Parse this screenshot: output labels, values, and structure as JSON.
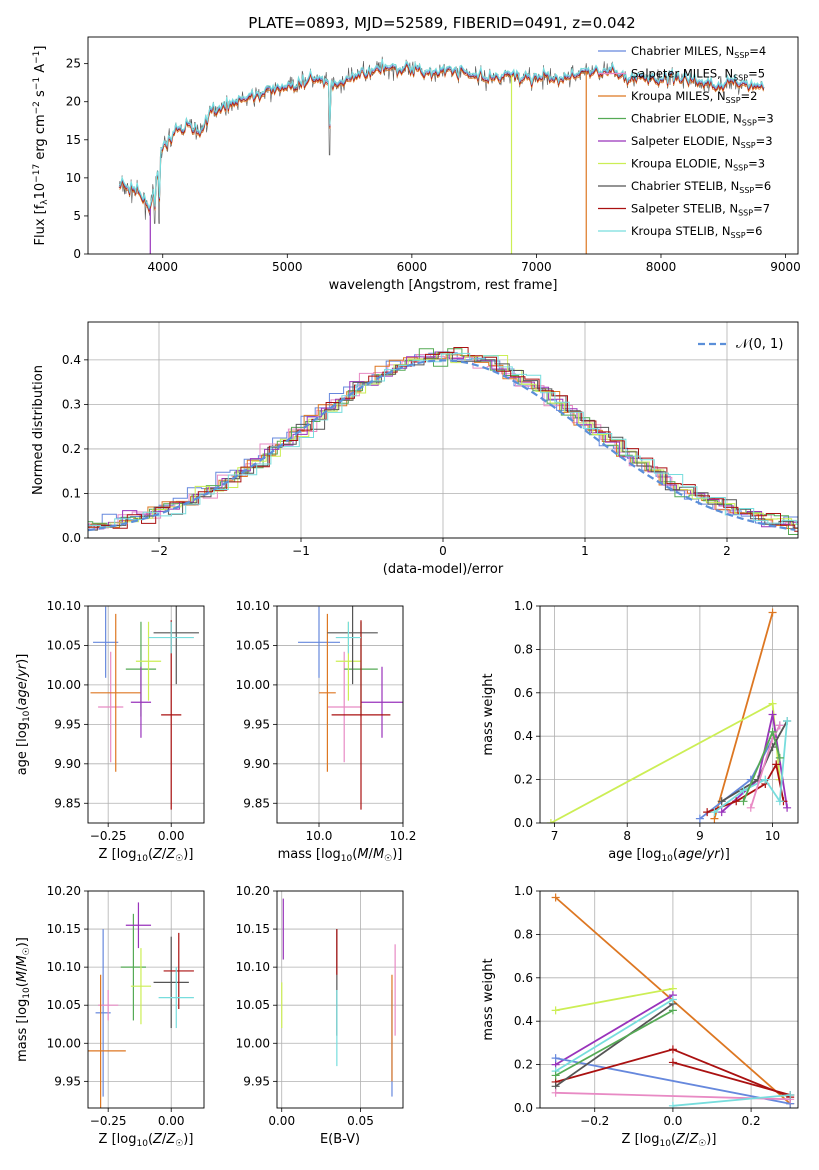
{
  "title": "PLATE=0893, MJD=52589, FIBERID=0491, z=0.042",
  "colors": {
    "Chabrier MILES": "#6688dd",
    "Salpeter MILES": "#e88ac4",
    "Kroupa MILES": "#dd7722",
    "Chabrier ELODIE": "#55aa55",
    "Salpeter ELODIE": "#9933bb",
    "Kroupa ELODIE": "#ccee55",
    "Chabrier STELIB": "#555555",
    "Salpeter STELIB": "#aa1111",
    "Kroupa STELIB": "#77dddd",
    "normal": "#5b8fd9"
  },
  "chart_data": [
    {
      "id": "spectrum",
      "type": "line",
      "xlabel": "wavelength [Angstrom, rest frame]",
      "xlim": [
        3400,
        9100
      ],
      "ylim": [
        0,
        28.5
      ],
      "xticks": [
        4000,
        5000,
        6000,
        7000,
        8000,
        9000
      ],
      "yticks": [
        0,
        5,
        10,
        15,
        20,
        25
      ],
      "legend": [
        {
          "name": "Chabrier MILES",
          "n": "4"
        },
        {
          "name": "Salpeter MILES",
          "n": "5"
        },
        {
          "name": "Kroupa MILES",
          "n": "2"
        },
        {
          "name": "Chabrier ELODIE",
          "n": "3"
        },
        {
          "name": "Salpeter ELODIE",
          "n": "3"
        },
        {
          "name": "Kroupa ELODIE",
          "n": "3"
        },
        {
          "name": "Chabrier STELIB",
          "n": "6"
        },
        {
          "name": "Salpeter STELIB",
          "n": "7"
        },
        {
          "name": "Kroupa STELIB",
          "n": "6"
        }
      ],
      "continuum_points": [
        [
          3650,
          9
        ],
        [
          3800,
          8
        ],
        [
          3900,
          6
        ],
        [
          4000,
          14
        ],
        [
          4100,
          16
        ],
        [
          4200,
          17
        ],
        [
          4300,
          16
        ],
        [
          4400,
          19
        ],
        [
          4600,
          20
        ],
        [
          4800,
          21
        ],
        [
          5000,
          22
        ],
        [
          5200,
          23
        ],
        [
          5400,
          22
        ],
        [
          5600,
          24
        ],
        [
          5800,
          24.5
        ],
        [
          6000,
          24
        ],
        [
          6200,
          24
        ],
        [
          6400,
          24
        ],
        [
          6600,
          23
        ],
        [
          6800,
          23.5
        ],
        [
          7000,
          23
        ],
        [
          7200,
          23
        ],
        [
          7400,
          24
        ],
        [
          7600,
          24
        ],
        [
          7800,
          23
        ],
        [
          8000,
          23
        ],
        [
          8200,
          23
        ],
        [
          8400,
          22
        ],
        [
          8600,
          22.5
        ],
        [
          8800,
          22
        ]
      ],
      "model_cuts": [
        {
          "model": "Salpeter ELODIE",
          "x": 3900
        },
        {
          "model": "Kroupa ELODIE",
          "x": 6800
        },
        {
          "model": "Kroupa MILES",
          "x": 7400
        }
      ]
    },
    {
      "id": "residuals",
      "type": "histogram",
      "xlabel": "(data-model)/error",
      "ylabel": "Normed distribution",
      "xlim": [
        -2.5,
        2.5
      ],
      "ylim": [
        0,
        0.485
      ],
      "xticks": [
        -2,
        -1,
        0,
        1,
        2
      ],
      "yticks": [
        0.0,
        0.1,
        0.2,
        0.3,
        0.4
      ],
      "bin_width": 0.1,
      "gaussian_legend": "𝒩(0, 1)"
    },
    {
      "id": "age_vs_Z",
      "type": "errorbar",
      "xlabel": "Z [log10(Z/Z☉)]",
      "ylabel": "age [log10(age/yr)]",
      "xlim": [
        -0.33,
        0.13
      ],
      "ylim": [
        9.825,
        10.1
      ],
      "xticks": [
        -0.25,
        0.0
      ],
      "yticks": [
        9.85,
        9.9,
        9.95,
        10.0,
        10.05,
        10.1
      ],
      "points": [
        {
          "model": "Chabrier MILES",
          "x": -0.26,
          "xerr": 0.05,
          "y": 10.054,
          "yerr": 0.045
        },
        {
          "model": "Salpeter MILES",
          "x": -0.24,
          "xerr": 0.05,
          "y": 9.972,
          "yerr": 0.07
        },
        {
          "model": "Kroupa MILES",
          "x": -0.22,
          "xerr": 0.1,
          "y": 9.99,
          "yerr": 0.1
        },
        {
          "model": "Chabrier ELODIE",
          "x": -0.12,
          "xerr": 0.06,
          "y": 10.02,
          "yerr": 0.06
        },
        {
          "model": "Salpeter ELODIE",
          "x": -0.12,
          "xerr": 0.04,
          "y": 9.978,
          "yerr": 0.045
        },
        {
          "model": "Kroupa ELODIE",
          "x": -0.09,
          "xerr": 0.05,
          "y": 10.03,
          "yerr": 0.05
        },
        {
          "model": "Chabrier STELIB",
          "x": 0.02,
          "xerr": 0.09,
          "y": 10.066,
          "yerr": 0.065
        },
        {
          "model": "Salpeter STELIB",
          "x": 0.0,
          "xerr": 0.04,
          "y": 9.962,
          "yerr": 0.12
        },
        {
          "model": "Kroupa STELIB",
          "x": 0.0,
          "xerr": 0.09,
          "y": 10.06,
          "yerr": 0.02
        }
      ]
    },
    {
      "id": "age_vs_mass",
      "type": "errorbar",
      "xlabel": "mass [log10(M/M☉)]",
      "xlim": [
        9.9,
        10.2
      ],
      "ylim": [
        9.825,
        10.1
      ],
      "xticks": [
        10.0,
        10.2
      ],
      "yticks": [
        9.85,
        9.9,
        9.95,
        10.0,
        10.05,
        10.1
      ],
      "points": [
        {
          "model": "Chabrier MILES",
          "x": 10.0,
          "xerr": 0.05,
          "y": 10.054,
          "yerr": 0.045
        },
        {
          "model": "Salpeter MILES",
          "x": 10.06,
          "xerr": 0.04,
          "y": 9.972,
          "yerr": 0.07
        },
        {
          "model": "Kroupa MILES",
          "x": 10.02,
          "xerr": 0.02,
          "y": 9.99,
          "yerr": 0.1
        },
        {
          "model": "Chabrier ELODIE",
          "x": 10.1,
          "xerr": 0.04,
          "y": 10.02,
          "yerr": 0.06
        },
        {
          "model": "Salpeter ELODIE",
          "x": 10.15,
          "xerr": 0.05,
          "y": 9.978,
          "yerr": 0.045
        },
        {
          "model": "Kroupa ELODIE",
          "x": 10.07,
          "xerr": 0.03,
          "y": 10.03,
          "yerr": 0.05
        },
        {
          "model": "Chabrier STELIB",
          "x": 10.08,
          "xerr": 0.06,
          "y": 10.066,
          "yerr": 0.065
        },
        {
          "model": "Salpeter STELIB",
          "x": 10.1,
          "xerr": 0.07,
          "y": 9.962,
          "yerr": 0.12
        },
        {
          "model": "Kroupa STELIB",
          "x": 10.07,
          "xerr": 0.03,
          "y": 10.06,
          "yerr": 0.02
        }
      ]
    },
    {
      "id": "weight_vs_age",
      "type": "line",
      "xlabel": "age [log10(age/yr)]",
      "ylabel": "mass weight",
      "xlim": [
        6.8,
        10.35
      ],
      "ylim": [
        0,
        1.0
      ],
      "xticks": [
        7,
        8,
        9,
        10
      ],
      "yticks": [
        0.0,
        0.2,
        0.4,
        0.6,
        0.8,
        1.0
      ],
      "series": [
        {
          "model": "Kroupa MILES",
          "x": [
            9.2,
            10.0
          ],
          "y": [
            0.02,
            0.97
          ]
        },
        {
          "model": "Kroupa ELODIE",
          "x": [
            6.95,
            10.0,
            10.1
          ],
          "y": [
            0.0,
            0.55,
            0.2
          ]
        },
        {
          "model": "Chabrier MILES",
          "x": [
            9.0,
            9.7,
            10.1
          ],
          "y": [
            0.02,
            0.2,
            0.45
          ]
        },
        {
          "model": "Salpeter ELODIE",
          "x": [
            9.3,
            9.8,
            10.0,
            10.2
          ],
          "y": [
            0.05,
            0.2,
            0.5,
            0.07
          ]
        },
        {
          "model": "Salpeter STELIB",
          "x": [
            9.1,
            9.5,
            9.9,
            10.05,
            10.15
          ],
          "y": [
            0.05,
            0.1,
            0.18,
            0.27,
            0.1
          ]
        },
        {
          "model": "Chabrier STELIB",
          "x": [
            9.3,
            9.8,
            10.0,
            10.2
          ],
          "y": [
            0.1,
            0.2,
            0.35,
            0.47
          ]
        },
        {
          "model": "Kroupa STELIB",
          "x": [
            9.2,
            9.6,
            9.9,
            10.1,
            10.2
          ],
          "y": [
            0.05,
            0.15,
            0.2,
            0.1,
            0.47
          ]
        },
        {
          "model": "Salpeter MILES",
          "x": [
            9.7,
            10.0,
            10.1
          ],
          "y": [
            0.07,
            0.39,
            0.45
          ]
        },
        {
          "model": "Chabrier ELODIE",
          "x": [
            9.6,
            10.0,
            10.1
          ],
          "y": [
            0.1,
            0.42,
            0.3
          ]
        }
      ]
    },
    {
      "id": "mass_vs_Z",
      "type": "errorbar",
      "xlabel": "Z [log10(Z/Z☉)]",
      "ylabel": "mass [log10(M/M☉)]",
      "xlim": [
        -0.33,
        0.13
      ],
      "ylim": [
        9.915,
        10.2
      ],
      "xticks": [
        -0.25,
        0.0
      ],
      "yticks": [
        9.95,
        10.0,
        10.05,
        10.1,
        10.15,
        10.2
      ],
      "points": [
        {
          "model": "Chabrier MILES",
          "x": -0.27,
          "xerr": 0.03,
          "y": 10.04,
          "yerr": 0.11
        },
        {
          "model": "Salpeter MILES",
          "x": -0.25,
          "xerr": 0.04,
          "y": 10.05,
          "yerr": 0.02
        },
        {
          "model": "Kroupa MILES",
          "x": -0.28,
          "xerr": 0.1,
          "y": 9.99,
          "yerr": 0.1
        },
        {
          "model": "Chabrier ELODIE",
          "x": -0.15,
          "xerr": 0.05,
          "y": 10.1,
          "yerr": 0.07
        },
        {
          "model": "Salpeter ELODIE",
          "x": -0.13,
          "xerr": 0.05,
          "y": 10.155,
          "yerr": 0.03
        },
        {
          "model": "Kroupa ELODIE",
          "x": -0.12,
          "xerr": 0.04,
          "y": 10.075,
          "yerr": 0.05
        },
        {
          "model": "Chabrier STELIB",
          "x": 0.0,
          "xerr": 0.07,
          "y": 10.08,
          "yerr": 0.06
        },
        {
          "model": "Salpeter STELIB",
          "x": 0.03,
          "xerr": 0.06,
          "y": 10.095,
          "yerr": 0.05
        },
        {
          "model": "Kroupa STELIB",
          "x": 0.02,
          "xerr": 0.07,
          "y": 10.06,
          "yerr": 0.04
        }
      ]
    },
    {
      "id": "mass_vs_ebv",
      "type": "errorbar",
      "xlabel": "E(B-V)",
      "xlim": [
        -0.003,
        0.077
      ],
      "ylim": [
        9.915,
        10.2
      ],
      "xticks": [
        0.0,
        0.05
      ],
      "yticks": [
        9.95,
        10.0,
        10.05,
        10.1,
        10.15,
        10.2
      ],
      "points": [
        {
          "model": "Chabrier MILES",
          "x": 0.07,
          "xerr": 0,
          "y": 10.0,
          "yerr": 0.07
        },
        {
          "model": "Salpeter MILES",
          "x": 0.072,
          "xerr": 0,
          "y": 10.07,
          "yerr": 0.06
        },
        {
          "model": "Kroupa MILES",
          "x": 0.07,
          "xerr": 0,
          "y": 10.02,
          "yerr": 0.07
        },
        {
          "model": "Salpeter ELODIE",
          "x": 0.001,
          "xerr": 0,
          "y": 10.15,
          "yerr": 0.04
        },
        {
          "model": "Kroupa ELODIE",
          "x": 0.0,
          "xerr": 0,
          "y": 10.05,
          "yerr": 0.03
        },
        {
          "model": "Chabrier STELIB",
          "x": 0.035,
          "xerr": 0,
          "y": 10.08,
          "yerr": 0.07
        },
        {
          "model": "Salpeter STELIB",
          "x": 0.035,
          "xerr": 0,
          "y": 10.12,
          "yerr": 0.03
        },
        {
          "model": "Kroupa STELIB",
          "x": 0.035,
          "xerr": 0,
          "y": 10.02,
          "yerr": 0.05
        }
      ]
    },
    {
      "id": "weight_vs_Z",
      "type": "line",
      "xlabel": "Z [log10(Z/Z☉)]",
      "ylabel": "mass weight",
      "xlim": [
        -0.34,
        0.32
      ],
      "ylim": [
        0,
        1.0
      ],
      "xticks": [
        -0.2,
        0.0,
        0.2
      ],
      "yticks": [
        0.0,
        0.2,
        0.4,
        0.6,
        0.8,
        1.0
      ],
      "series": [
        {
          "model": "Kroupa MILES",
          "x": [
            -0.3,
            0.3
          ],
          "y": [
            0.97,
            0.02
          ]
        },
        {
          "model": "Kroupa ELODIE",
          "x": [
            -0.3,
            0.0
          ],
          "y": [
            0.45,
            0.55
          ]
        },
        {
          "model": "Salpeter ELODIE",
          "x": [
            -0.3,
            0.0
          ],
          "y": [
            0.2,
            0.52
          ]
        },
        {
          "model": "Chabrier MILES",
          "x": [
            -0.3,
            0.3
          ],
          "y": [
            0.23,
            0.02
          ]
        },
        {
          "model": "Salpeter STELIB",
          "x": [
            -0.3,
            0.0,
            0.3
          ],
          "y": [
            0.12,
            0.27,
            0.05
          ]
        },
        {
          "model": "Chabrier STELIB",
          "x": [
            -0.3,
            0.0
          ],
          "y": [
            0.1,
            0.48
          ]
        },
        {
          "model": "Kroupa STELIB",
          "x": [
            -0.3,
            0.0
          ],
          "y": [
            0.17,
            0.5
          ]
        },
        {
          "model": "Salpeter MILES",
          "x": [
            -0.3,
            0.3
          ],
          "y": [
            0.07,
            0.04
          ]
        },
        {
          "model": "Chabrier ELODIE",
          "x": [
            -0.3,
            0.0
          ],
          "y": [
            0.15,
            0.45
          ]
        },
        {
          "model": "Salpeter STELIB",
          "x": [
            0.0,
            0.3
          ],
          "y": [
            0.21,
            0.06
          ]
        },
        {
          "model": "Kroupa STELIB",
          "x": [
            0.0,
            0.3
          ],
          "y": [
            0.01,
            0.06
          ]
        }
      ]
    }
  ]
}
